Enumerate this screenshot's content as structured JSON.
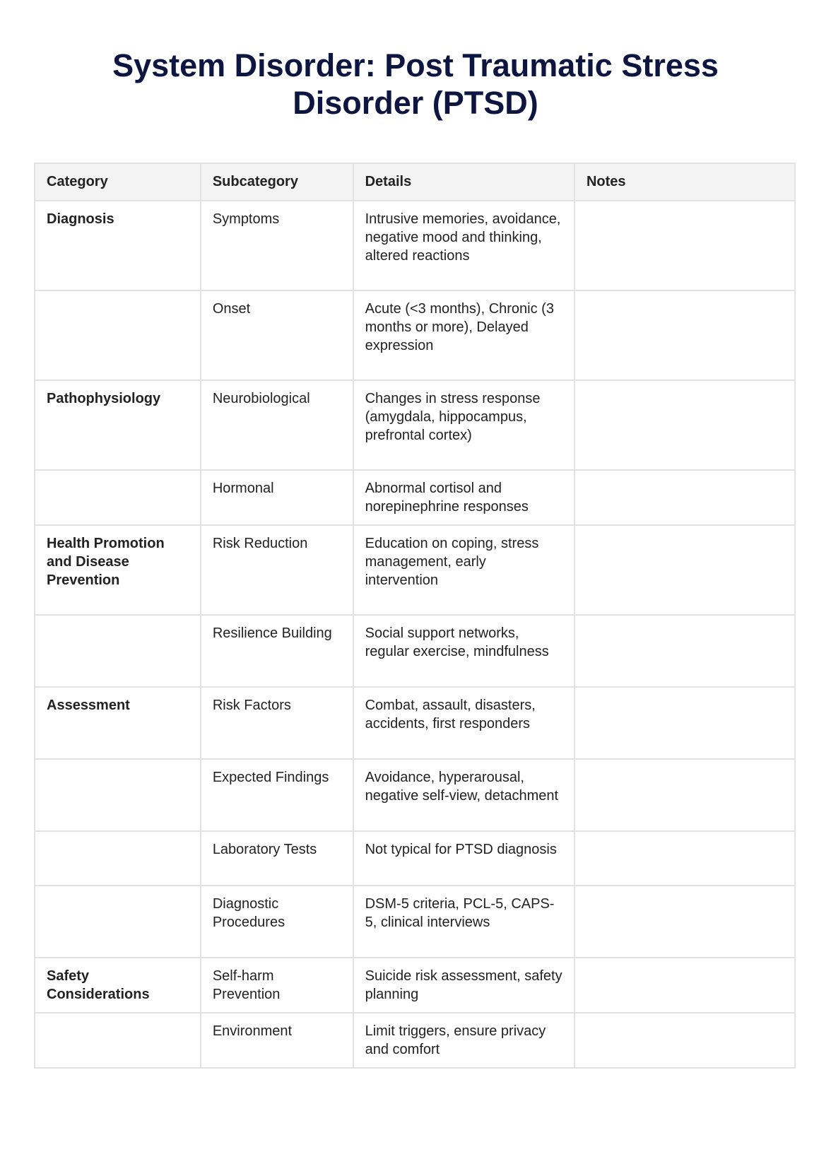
{
  "title": "System Disorder: Post Traumatic Stress Disorder (PTSD)",
  "table": {
    "headers": [
      "Category",
      "Subcategory",
      "Details",
      "Notes"
    ],
    "rows": [
      {
        "category": "Diagnosis",
        "subcategory": "Symptoms",
        "details": "Intrusive memories, avoidance, negative mood and thinking, altered reactions",
        "notes": ""
      },
      {
        "category": "",
        "subcategory": "Onset",
        "details": "Acute (<3 months), Chronic (3 months or more), Delayed expression",
        "notes": ""
      },
      {
        "category": "Pathophysiology",
        "subcategory": "Neurobiological",
        "details": "Changes in stress response (amygdala, hippocampus, prefrontal cortex)",
        "notes": ""
      },
      {
        "category": "",
        "subcategory": "Hormonal",
        "details": "Abnormal cortisol and norepinephrine responses",
        "notes": ""
      },
      {
        "category": "Health Promotion and Disease Prevention",
        "subcategory": "Risk Reduction",
        "details": "Education on coping, stress management, early intervention",
        "notes": ""
      },
      {
        "category": "",
        "subcategory": "Resilience Building",
        "details": "Social support networks, regular exercise, mindfulness",
        "notes": ""
      },
      {
        "category": "Assessment",
        "subcategory": "Risk Factors",
        "details": "Combat, assault, disasters, accidents, first responders",
        "notes": ""
      },
      {
        "category": "",
        "subcategory": "Expected Findings",
        "details": "Avoidance, hyperarousal, negative self-view, detachment",
        "notes": ""
      },
      {
        "category": "",
        "subcategory": "Laboratory Tests",
        "details": "Not typical for PTSD diagnosis",
        "notes": ""
      },
      {
        "category": "",
        "subcategory": "Diagnostic Procedures",
        "details": "DSM-5 criteria, PCL-5, CAPS-5, clinical interviews",
        "notes": ""
      },
      {
        "category": "Safety Considerations",
        "subcategory": "Self-harm Prevention",
        "details": "Suicide risk assessment, safety planning",
        "notes": ""
      },
      {
        "category": "",
        "subcategory": "Environment",
        "details": "Limit triggers, ensure privacy and comfort",
        "notes": ""
      }
    ]
  }
}
